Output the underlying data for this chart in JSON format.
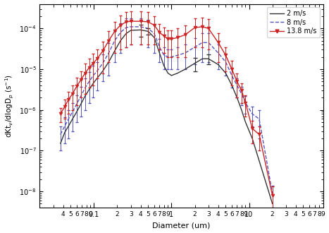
{
  "xlabel": "Diameter (um)",
  "ylabel_text": "dKt$_v$/dlogD$_p$ (s$^{-1}$)",
  "xlim": [
    0.033,
    22
  ],
  "ylim": [
    4e-09,
    0.0004
  ],
  "legend_labels": [
    "2 m/s",
    "8 m/s",
    "13.8 m/s"
  ],
  "s1_x": [
    0.037,
    0.042,
    0.047,
    0.053,
    0.06,
    0.068,
    0.077,
    0.087,
    0.098,
    0.11,
    0.13,
    0.155,
    0.185,
    0.22,
    0.26,
    0.3,
    0.4,
    0.5,
    0.6,
    0.7,
    0.8,
    0.9,
    1.0,
    1.2,
    1.5,
    2.0,
    2.5,
    3.0,
    4.0,
    5.0,
    6.0,
    7.0,
    8.0,
    9.0,
    11.0,
    20.0
  ],
  "s1_y": [
    1.5e-07,
    2.8e-07,
    4e-07,
    6e-07,
    9e-07,
    1.4e-06,
    2.2e-06,
    3.2e-06,
    4.5e-06,
    6e-06,
    9e-06,
    1.5e-05,
    2.8e-05,
    5e-05,
    7.5e-05,
    9e-05,
    9.2e-05,
    8.5e-05,
    6e-05,
    2.5e-05,
    1.2e-05,
    8e-06,
    7e-06,
    8e-06,
    1e-05,
    1.4e-05,
    1.8e-05,
    1.8e-05,
    1.3e-05,
    8e-06,
    4e-06,
    2e-06,
    1e-06,
    5e-07,
    2e-07,
    5e-09
  ],
  "s1_eb_idx": [
    16,
    17,
    25,
    27
  ],
  "s1_eb_lo": [
    3e-05,
    1.5e-05,
    5e-06,
    5e-06
  ],
  "s1_eb_hi": [
    3e-05,
    1.5e-05,
    5e-06,
    5e-06
  ],
  "s1_color": "#333333",
  "s2_x": [
    0.037,
    0.042,
    0.047,
    0.053,
    0.06,
    0.068,
    0.077,
    0.087,
    0.098,
    0.11,
    0.13,
    0.155,
    0.185,
    0.22,
    0.26,
    0.3,
    0.4,
    0.5,
    0.6,
    0.7,
    0.8,
    0.9,
    1.0,
    1.2,
    1.5,
    2.0,
    2.5,
    3.0,
    4.0,
    5.0,
    6.0,
    7.0,
    8.0,
    9.0,
    11.0,
    13.5,
    20.0
  ],
  "s2_y": [
    2.5e-07,
    4e-07,
    6e-07,
    9e-07,
    1.4e-06,
    2.2e-06,
    3.5e-06,
    5e-06,
    7e-06,
    9e-06,
    1.4e-05,
    2.5e-05,
    5e-05,
    8e-05,
    0.000105,
    0.00011,
    0.00011,
    0.0001,
    7.5e-05,
    3.5e-05,
    2.2e-05,
    2e-05,
    2e-05,
    2.2e-05,
    2.5e-05,
    3.5e-05,
    4.5e-05,
    4.5e-05,
    2.5e-05,
    1.5e-05,
    7e-06,
    4e-06,
    2.5e-06,
    1.5e-06,
    8e-07,
    6e-07,
    9e-09
  ],
  "s2_elo": [
    1.5e-07,
    2.5e-07,
    4e-07,
    6e-07,
    9e-07,
    1.5e-06,
    2.5e-06,
    3.5e-06,
    5e-06,
    6e-06,
    9e-06,
    1.8e-05,
    3.5e-05,
    5.5e-05,
    7e-05,
    7e-05,
    7e-05,
    6.5e-05,
    5e-05,
    2e-05,
    1.2e-05,
    1e-05,
    1e-05,
    1.2e-05,
    1.5e-05,
    2.2e-05,
    3e-05,
    3e-05,
    1.5e-05,
    8e-06,
    3.5e-06,
    2e-06,
    1.2e-06,
    7e-07,
    4e-07,
    4e-07,
    5e-09
  ],
  "s2_ehi": [
    1.5e-07,
    2.5e-07,
    4e-07,
    6e-07,
    9e-07,
    1.5e-06,
    2.5e-06,
    3.5e-06,
    5e-06,
    6e-06,
    9e-06,
    1.8e-05,
    3.5e-05,
    5.5e-05,
    7e-05,
    7e-05,
    7e-05,
    6.5e-05,
    5e-05,
    2e-05,
    1.2e-05,
    1e-05,
    1e-05,
    1.2e-05,
    1.5e-05,
    2.2e-05,
    3e-05,
    3e-05,
    1.5e-05,
    8e-06,
    3.5e-06,
    2e-06,
    1.2e-06,
    7e-07,
    4e-07,
    4e-07,
    5e-09
  ],
  "s2_color": "#5555bb",
  "s3_x": [
    0.037,
    0.042,
    0.047,
    0.053,
    0.06,
    0.068,
    0.077,
    0.087,
    0.098,
    0.11,
    0.13,
    0.155,
    0.185,
    0.22,
    0.26,
    0.3,
    0.4,
    0.5,
    0.6,
    0.7,
    0.8,
    0.9,
    1.0,
    1.2,
    1.5,
    2.0,
    2.5,
    3.0,
    4.0,
    5.0,
    6.0,
    7.0,
    8.0,
    9.0,
    11.0,
    13.5,
    20.0
  ],
  "s3_y": [
    8e-07,
    1.2e-06,
    1.8e-06,
    2.5e-06,
    3.8e-06,
    5.5e-06,
    8e-06,
    1.1e-05,
    1.4e-05,
    1.8e-05,
    2.8e-05,
    5e-05,
    8.5e-05,
    0.00012,
    0.000145,
    0.00015,
    0.00015,
    0.000145,
    0.00012,
    8e-05,
    6.5e-05,
    5.5e-05,
    5.5e-05,
    6e-05,
    7e-05,
    0.000105,
    0.00011,
    0.0001,
    4.5e-05,
    2.2e-05,
    1e-05,
    5e-06,
    3e-06,
    1.5e-06,
    3.5e-07,
    2.5e-07,
    8e-09
  ],
  "s3_elo": [
    3e-07,
    6e-07,
    1e-06,
    1.5e-06,
    2.5e-06,
    3.5e-06,
    5.5e-06,
    7.5e-06,
    1e-05,
    1.2e-05,
    2e-05,
    3.5e-05,
    6e-05,
    9e-05,
    0.00011,
    0.00011,
    0.00011,
    0.000105,
    8e-05,
    5e-05,
    4e-05,
    3.5e-05,
    3.5e-05,
    4e-05,
    5e-05,
    7e-05,
    7.5e-05,
    7e-05,
    3e-05,
    1.3e-05,
    6e-06,
    3e-06,
    1.5e-06,
    8e-07,
    2e-07,
    1.5e-07,
    5e-09
  ],
  "s3_ehi": [
    3e-07,
    6e-07,
    1e-06,
    1.5e-06,
    2.5e-06,
    3.5e-06,
    5.5e-06,
    7.5e-06,
    1e-05,
    1.2e-05,
    2e-05,
    3.5e-05,
    6e-05,
    9e-05,
    0.00011,
    0.00011,
    0.00011,
    0.000105,
    8e-05,
    5e-05,
    4e-05,
    3.5e-05,
    3.5e-05,
    4e-05,
    5e-05,
    7e-05,
    7.5e-05,
    7e-05,
    3e-05,
    1.3e-05,
    6e-06,
    3e-06,
    1.5e-06,
    8e-07,
    2e-07,
    1.5e-07,
    5e-09
  ],
  "s3_color": "#cc2222"
}
